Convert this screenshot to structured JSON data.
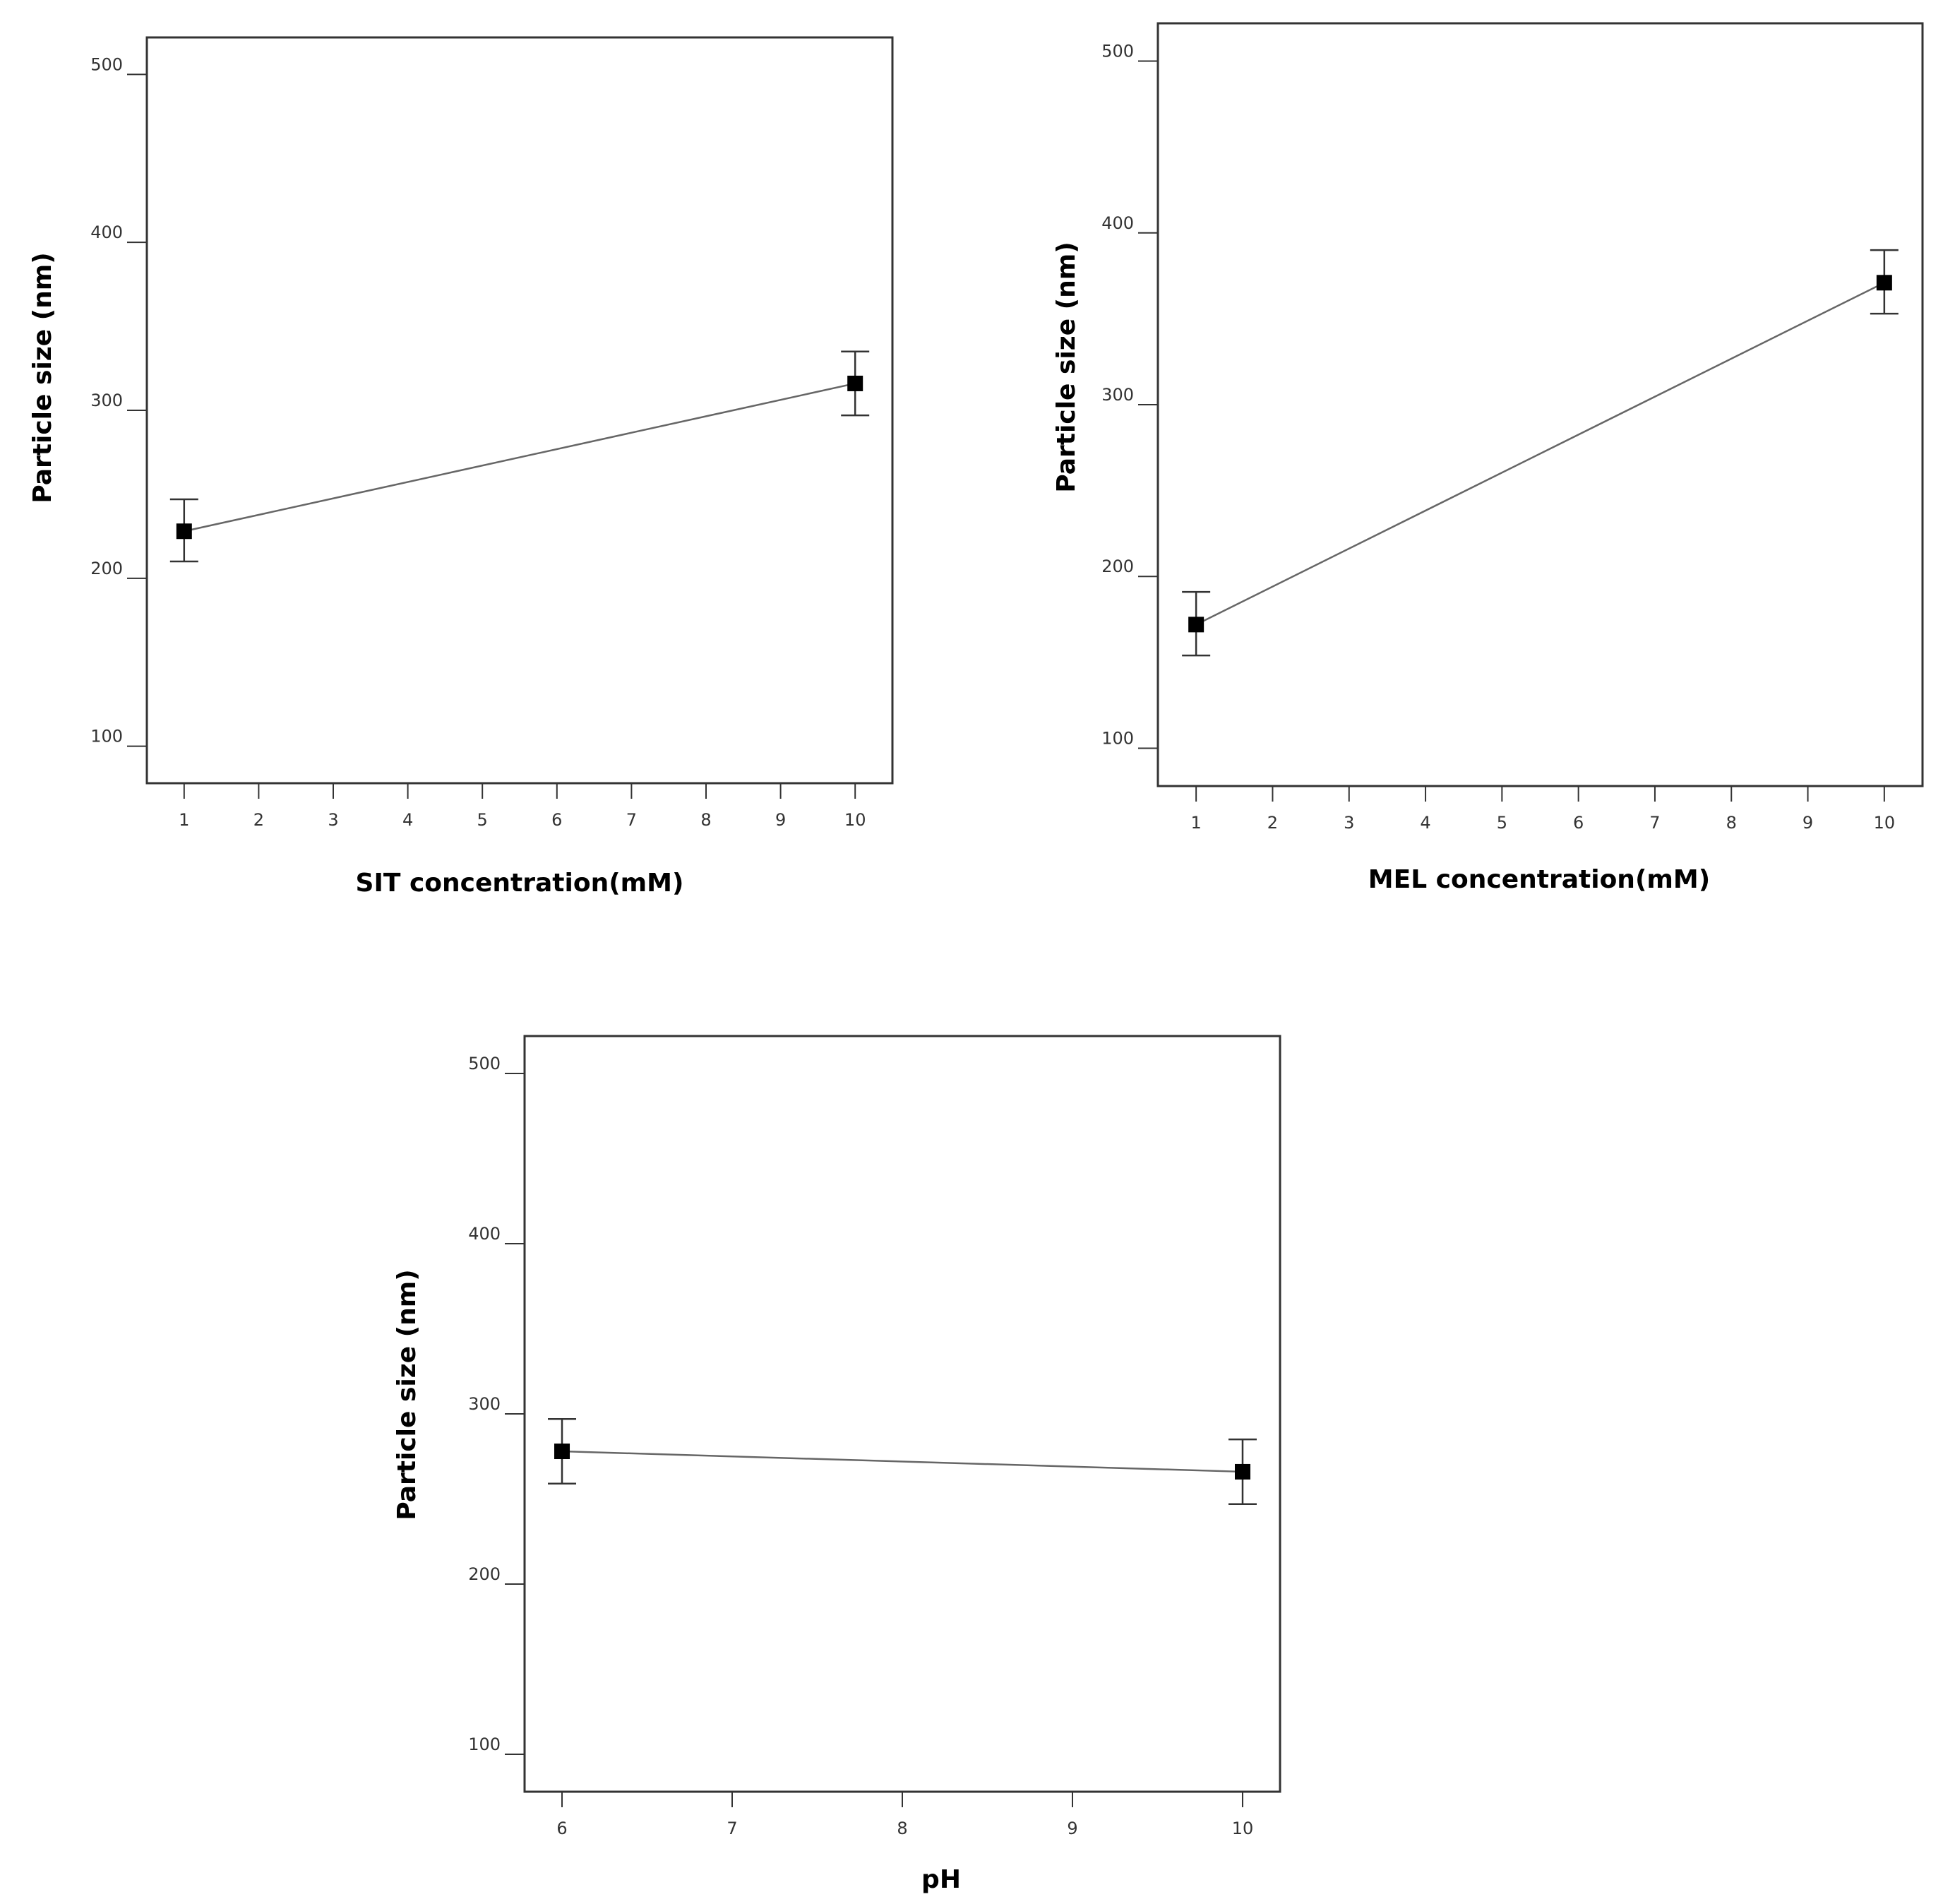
{
  "chart_data": [
    {
      "type": "line",
      "xlabel": "SIT concentration(mM)",
      "ylabel": "Particle size (nm)",
      "xlim": [
        0.5,
        10.5
      ],
      "ylim": [
        78,
        522
      ],
      "x_ticks": [
        1,
        2,
        3,
        4,
        5,
        6,
        7,
        8,
        9,
        10
      ],
      "y_ticks": [
        100,
        200,
        300,
        400,
        500
      ],
      "grid": false,
      "marker": "square",
      "x": [
        1,
        10
      ],
      "y": [
        228,
        316
      ],
      "error_low": [
        210,
        297
      ],
      "error_high": [
        247,
        335
      ]
    },
    {
      "type": "line",
      "xlabel": "MEL concentration(mM)",
      "ylabel": "Particle size (nm)",
      "xlim": [
        0.5,
        10.5
      ],
      "ylim": [
        78,
        522
      ],
      "x_ticks": [
        1,
        2,
        3,
        4,
        5,
        6,
        7,
        8,
        9,
        10
      ],
      "y_ticks": [
        100,
        200,
        300,
        400,
        500
      ],
      "grid": false,
      "marker": "square",
      "x": [
        1,
        10
      ],
      "y": [
        172,
        371
      ],
      "error_low": [
        154,
        353
      ],
      "error_high": [
        191,
        390
      ]
    },
    {
      "type": "line",
      "xlabel": "pH",
      "ylabel": "Particle size (nm)",
      "xlim": [
        5.78,
        10.22
      ],
      "ylim": [
        78,
        522
      ],
      "x_ticks": [
        6,
        7,
        8,
        9,
        10
      ],
      "y_ticks": [
        100,
        200,
        300,
        400,
        500
      ],
      "grid": false,
      "marker": "square",
      "x": [
        6,
        10
      ],
      "y": [
        278,
        266
      ],
      "error_low": [
        259,
        247
      ],
      "error_high": [
        297,
        285
      ]
    }
  ]
}
